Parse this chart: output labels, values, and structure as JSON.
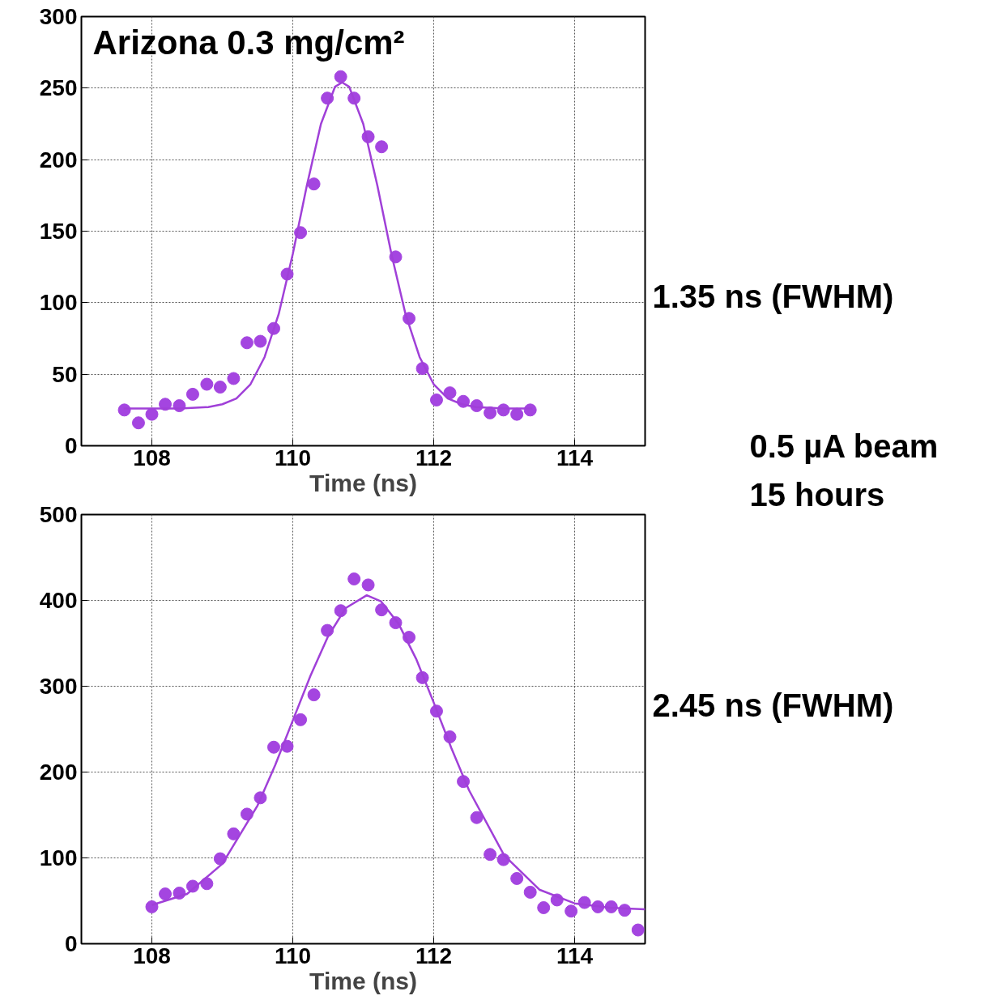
{
  "chart_data": [
    {
      "type": "scatter",
      "title": "Arizona 0.3 mg/cm²",
      "xlabel": "Time (ns)",
      "xlim": [
        107,
        115
      ],
      "ylim": [
        0,
        300
      ],
      "xticks": [
        108,
        110,
        112,
        114
      ],
      "yticks": [
        0,
        50,
        100,
        150,
        200,
        250,
        300
      ],
      "grid": true,
      "annotations": [
        "1.35 ns (FWHM)",
        "0.5 µA beam",
        "15 hours"
      ],
      "series": [
        {
          "marker": "circle",
          "color": "#a445e0",
          "x": [
            107.61,
            107.81,
            108.0,
            108.19,
            108.39,
            108.58,
            108.78,
            108.97,
            109.16,
            109.35,
            109.54,
            109.73,
            109.92,
            110.11,
            110.3,
            110.49,
            110.68,
            110.87,
            111.07,
            111.26,
            111.46,
            111.65,
            111.84,
            112.04,
            112.23,
            112.42,
            112.61,
            112.8,
            112.99,
            113.18,
            113.37
          ],
          "values": [
            25,
            16,
            22,
            29,
            28,
            36,
            43,
            41,
            47,
            72,
            73,
            82,
            120,
            149,
            183,
            243,
            258,
            243,
            216,
            209,
            132,
            89,
            54,
            32,
            37,
            31,
            28,
            23,
            25,
            22,
            25
          ]
        },
        {
          "type": "line",
          "line_style": "solid",
          "color": "#a040d8",
          "x": [
            107.6,
            108.0,
            108.4,
            108.8,
            109.0,
            109.2,
            109.4,
            109.6,
            109.8,
            110.0,
            110.2,
            110.4,
            110.6,
            110.7,
            110.8,
            111.0,
            111.2,
            111.4,
            111.6,
            111.8,
            112.0,
            112.2,
            112.4,
            112.6,
            113.0,
            113.4
          ],
          "values": [
            26,
            26,
            26,
            27,
            29,
            33,
            43,
            62,
            92,
            134,
            182,
            225,
            251,
            254,
            251,
            225,
            182,
            134,
            92,
            62,
            43,
            33,
            29,
            27,
            26,
            26
          ]
        }
      ]
    },
    {
      "type": "scatter",
      "xlabel": "Time (ns)",
      "xlim": [
        107,
        115
      ],
      "ylim": [
        0,
        500
      ],
      "xticks": [
        108,
        110,
        112,
        114
      ],
      "yticks": [
        0,
        100,
        200,
        300,
        400,
        500
      ],
      "grid": true,
      "annotations": [
        "2.45 ns (FWHM)"
      ],
      "series": [
        {
          "marker": "circle",
          "color": "#a445e0",
          "x": [
            108.0,
            108.19,
            108.39,
            108.58,
            108.78,
            108.97,
            109.16,
            109.35,
            109.54,
            109.73,
            109.92,
            110.11,
            110.3,
            110.49,
            110.68,
            110.87,
            111.07,
            111.26,
            111.46,
            111.65,
            111.84,
            112.04,
            112.23,
            112.42,
            112.61,
            112.8,
            112.99,
            113.18,
            113.37,
            113.56,
            113.75,
            113.95,
            114.14,
            114.33,
            114.52,
            114.71,
            114.9
          ],
          "values": [
            43,
            58,
            59,
            67,
            70,
            99,
            128,
            151,
            170,
            229,
            230,
            261,
            290,
            365,
            388,
            425,
            418,
            389,
            374,
            357,
            310,
            271,
            241,
            189,
            147,
            104,
            98,
            76,
            60,
            42,
            51,
            38,
            48,
            43,
            43,
            39,
            16
          ]
        },
        {
          "type": "line",
          "line_style": "solid",
          "color": "#a040d8",
          "x": [
            108.0,
            108.5,
            109.0,
            109.5,
            109.75,
            110.0,
            110.25,
            110.5,
            110.75,
            111.05,
            111.25,
            111.5,
            111.75,
            112.0,
            112.25,
            112.5,
            113.0,
            113.5,
            114.0,
            114.5,
            115.0
          ],
          "values": [
            45,
            58,
            93,
            161,
            208,
            260,
            312,
            358,
            391,
            406,
            399,
            373,
            332,
            281,
            228,
            179,
            103,
            63,
            47,
            42,
            40
          ]
        }
      ]
    }
  ]
}
